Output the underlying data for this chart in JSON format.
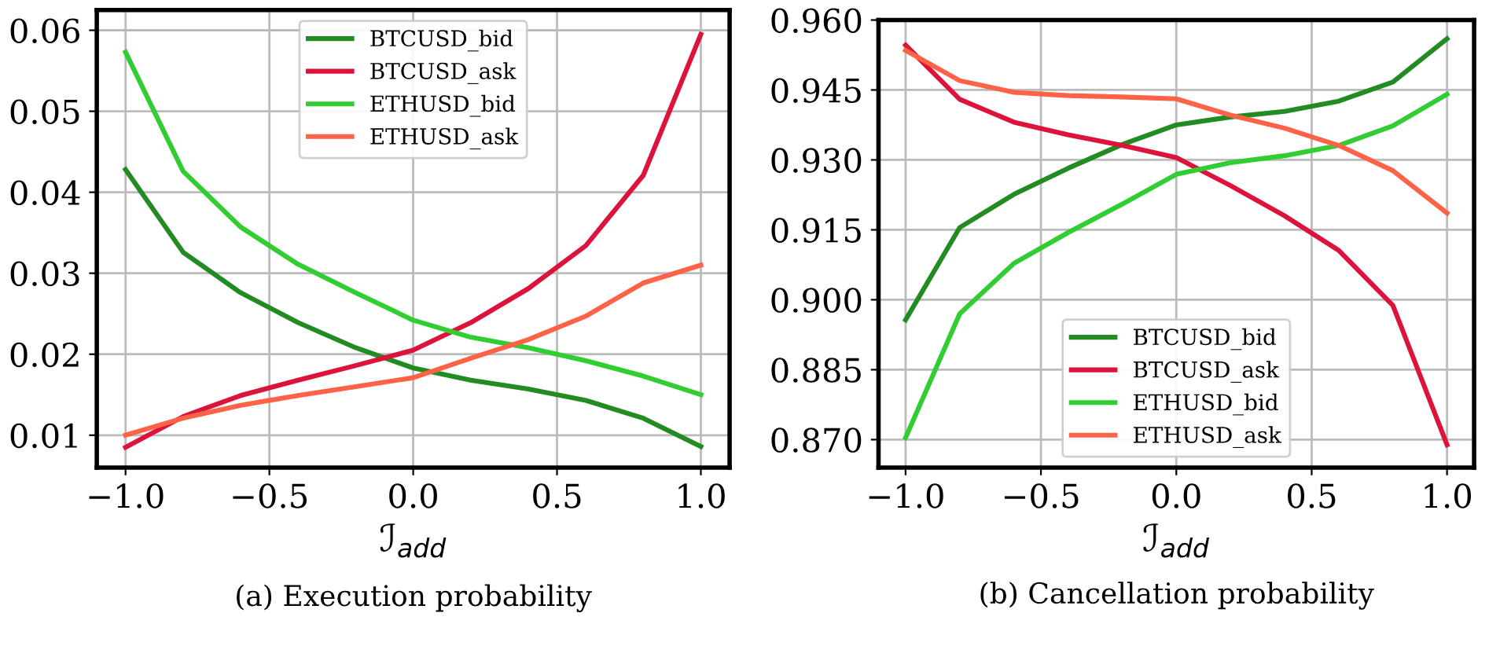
{
  "chart_data": [
    {
      "type": "line",
      "xlabel": "ℐ$_{add}$",
      "annotations": [
        "(a) Execution probability"
      ],
      "x": [
        -1.0,
        -0.8,
        -0.6,
        -0.4,
        -0.2,
        0.0,
        0.2,
        0.4,
        0.6,
        0.8,
        1.0
      ],
      "series": [
        {
          "name": "BTCUSD_bid",
          "color": "#228b22",
          "values": [
            0.0428,
            0.0326,
            0.0276,
            0.0239,
            0.0208,
            0.0183,
            0.0168,
            0.0157,
            0.0143,
            0.0121,
            0.0086
          ]
        },
        {
          "name": "BTCUSD_ask",
          "color": "#dc143c",
          "values": [
            0.0085,
            0.0123,
            0.0149,
            0.0168,
            0.0186,
            0.0205,
            0.0239,
            0.0281,
            0.0334,
            0.0421,
            0.0595
          ]
        },
        {
          "name": "ETHUSD_bid",
          "color": "#32cd32",
          "values": [
            0.0573,
            0.0426,
            0.0357,
            0.0311,
            0.0276,
            0.0242,
            0.0221,
            0.0208,
            0.0192,
            0.0173,
            0.015
          ]
        },
        {
          "name": "ETHUSD_ask",
          "color": "#ff6347",
          "values": [
            0.01,
            0.0121,
            0.0137,
            0.0149,
            0.016,
            0.0171,
            0.0195,
            0.0218,
            0.0247,
            0.0288,
            0.031
          ]
        }
      ],
      "xlim": [
        -1.1,
        1.1
      ],
      "ylim": [
        0.006,
        0.0625
      ],
      "xticks": [
        {
          "value": -1.0,
          "label": "−1.0"
        },
        {
          "value": -0.5,
          "label": "−0.5"
        },
        {
          "value": 0.0,
          "label": "0.0"
        },
        {
          "value": 0.5,
          "label": "0.5"
        },
        {
          "value": 1.0,
          "label": "1.0"
        }
      ],
      "yticks": [
        {
          "value": 0.01,
          "label": "0.01"
        },
        {
          "value": 0.02,
          "label": "0.02"
        },
        {
          "value": 0.03,
          "label": "0.03"
        },
        {
          "value": 0.04,
          "label": "0.04"
        },
        {
          "value": 0.05,
          "label": "0.05"
        },
        {
          "value": 0.06,
          "label": "0.06"
        }
      ],
      "grid": true,
      "legend": "top",
      "line_style": "solid",
      "marker": "none"
    },
    {
      "type": "line",
      "xlabel": "ℐ$_{add}$",
      "annotations": [
        "(b) Cancellation probability"
      ],
      "x": [
        -1.0,
        -0.8,
        -0.6,
        -0.4,
        -0.2,
        0.0,
        0.2,
        0.4,
        0.6,
        0.8,
        1.0
      ],
      "series": [
        {
          "name": "BTCUSD_bid",
          "color": "#228b22",
          "values": [
            0.8957,
            0.9155,
            0.9226,
            0.9282,
            0.9333,
            0.9375,
            0.9392,
            0.9404,
            0.9426,
            0.9467,
            0.956
          ]
        },
        {
          "name": "BTCUSD_ask",
          "color": "#dc143c",
          "values": [
            0.9546,
            0.943,
            0.9381,
            0.9354,
            0.9331,
            0.9305,
            0.9245,
            0.918,
            0.9106,
            0.8988,
            0.8689
          ]
        },
        {
          "name": "ETHUSD_bid",
          "color": "#32cd32",
          "values": [
            0.8704,
            0.897,
            0.9078,
            0.9144,
            0.9205,
            0.9269,
            0.9294,
            0.9309,
            0.9331,
            0.9373,
            0.9441
          ]
        },
        {
          "name": "ETHUSD_ask",
          "color": "#ff6347",
          "values": [
            0.9535,
            0.947,
            0.9445,
            0.9438,
            0.9435,
            0.9431,
            0.9396,
            0.9368,
            0.9331,
            0.9277,
            0.9186
          ]
        }
      ],
      "xlim": [
        -1.1,
        1.1
      ],
      "ylim": [
        0.864,
        0.96
      ],
      "xticks": [
        {
          "value": -1.0,
          "label": "−1.0"
        },
        {
          "value": -0.5,
          "label": "−0.5"
        },
        {
          "value": 0.0,
          "label": "0.0"
        },
        {
          "value": 0.5,
          "label": "0.5"
        },
        {
          "value": 1.0,
          "label": "1.0"
        }
      ],
      "yticks": [
        {
          "value": 0.87,
          "label": "0.870"
        },
        {
          "value": 0.885,
          "label": "0.885"
        },
        {
          "value": 0.9,
          "label": "0.900"
        },
        {
          "value": 0.915,
          "label": "0.915"
        },
        {
          "value": 0.93,
          "label": "0.930"
        },
        {
          "value": 0.945,
          "label": "0.945"
        },
        {
          "value": 0.96,
          "label": "0.960"
        }
      ],
      "grid": true,
      "legend": "bottom",
      "line_style": "solid",
      "marker": "none"
    }
  ]
}
